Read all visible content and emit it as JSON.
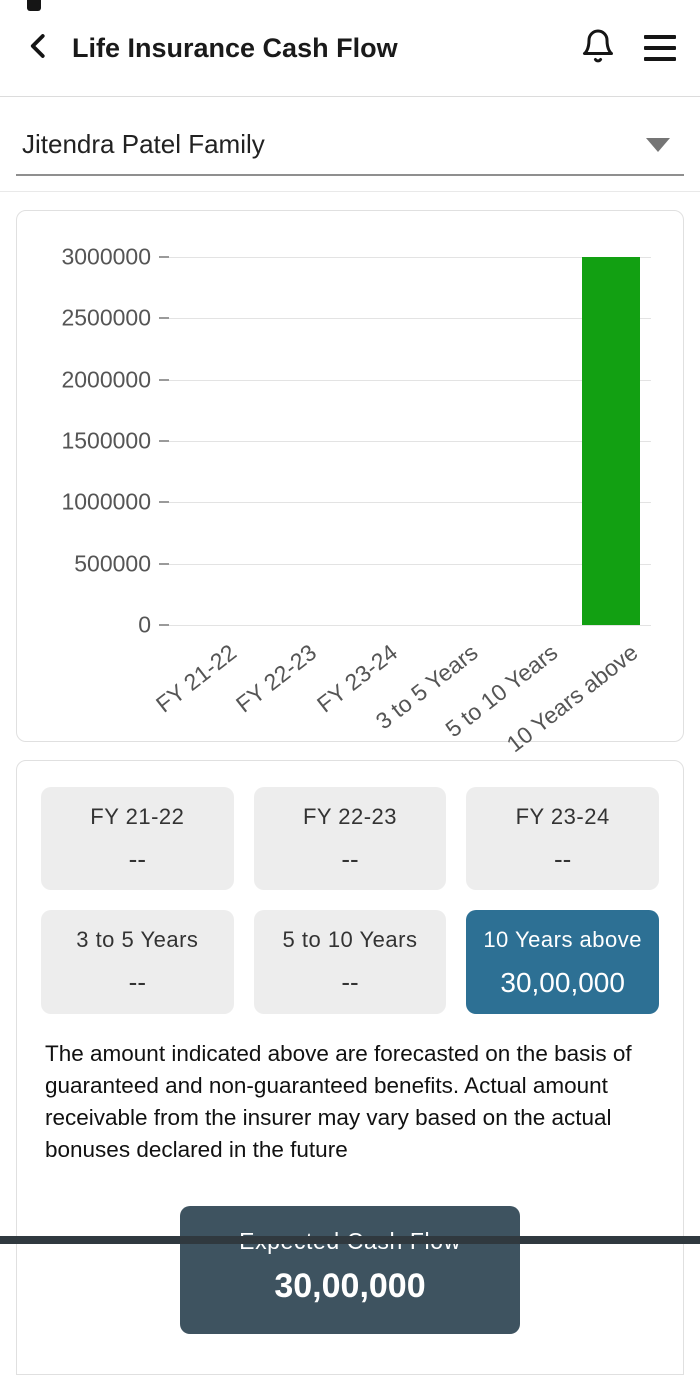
{
  "header": {
    "title": "Life Insurance Cash Flow",
    "icons": {
      "back": "chevron-left",
      "notifications": "bell",
      "menu": "hamburger"
    }
  },
  "family_selector": {
    "value": "Jitendra Patel Family",
    "icon": "caret-down"
  },
  "chart_data": {
    "type": "bar",
    "categories": [
      "FY 21-22",
      "FY 22-23",
      "FY 23-24",
      "3 to 5 Years",
      "5 to 10 Years",
      "10 Years above"
    ],
    "values": [
      0,
      0,
      0,
      0,
      0,
      3000000
    ],
    "y_ticks": [
      0,
      500000,
      1000000,
      1500000,
      2000000,
      2500000,
      3000000
    ],
    "ylim": [
      0,
      3000000
    ],
    "title": "",
    "xlabel": "",
    "ylabel": "",
    "grid": true,
    "legend": false,
    "bar_color": "#12a012"
  },
  "summary_tiles": [
    {
      "label": "FY 21-22",
      "value": "--",
      "highlight": false
    },
    {
      "label": "FY 22-23",
      "value": "--",
      "highlight": false
    },
    {
      "label": "FY 23-24",
      "value": "--",
      "highlight": false
    },
    {
      "label": "3 to 5 Years",
      "value": "--",
      "highlight": false
    },
    {
      "label": "5 to 10 Years",
      "value": "--",
      "highlight": false
    },
    {
      "label": "10 Years above",
      "value": "30,00,000",
      "highlight": true
    }
  ],
  "disclaimer": "The amount indicated above are forecasted on the basis of guaranteed and non-guaranteed benefits. Actual amount receivable from the insurer may vary based on the actual bonuses declared in the future",
  "expected_cash_flow": {
    "label": "Expected Cash Flow",
    "value": "30,00,000"
  },
  "colors": {
    "bar_green": "#12a012",
    "highlight_blue": "#2d7094",
    "button_dark": "#3e5360"
  }
}
